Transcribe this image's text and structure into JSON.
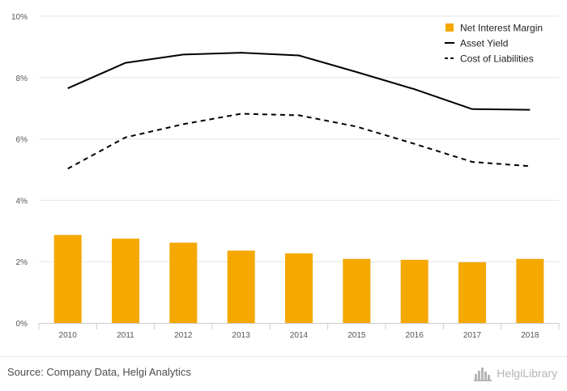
{
  "chart_data": {
    "type": "bar",
    "categories": [
      "2010",
      "2011",
      "2012",
      "2013",
      "2014",
      "2015",
      "2016",
      "2017",
      "2018"
    ],
    "ylim": [
      0,
      10
    ],
    "yticks": [
      0,
      2,
      4,
      6,
      8,
      10
    ],
    "ytick_labels": [
      "0%",
      "2%",
      "4%",
      "6%",
      "8%",
      "10%"
    ],
    "grid": true,
    "legend_position": "top-right",
    "series": [
      {
        "name": "Net Interest Margin",
        "type": "bar",
        "color": "#f5a800",
        "values": [
          2.87,
          2.75,
          2.62,
          2.36,
          2.27,
          2.09,
          2.06,
          1.98,
          2.09
        ]
      },
      {
        "name": "Asset Yield",
        "type": "line",
        "style": "solid",
        "color": "#000000",
        "values": [
          7.65,
          8.48,
          8.75,
          8.81,
          8.72,
          8.18,
          7.62,
          6.97,
          6.95
        ]
      },
      {
        "name": "Cost of Liabilities",
        "type": "line",
        "style": "dashed",
        "color": "#000000",
        "values": [
          5.03,
          6.05,
          6.48,
          6.82,
          6.77,
          6.4,
          5.84,
          5.25,
          5.11
        ]
      }
    ]
  },
  "footer": {
    "source": "Source: Company Data, Helgi Analytics",
    "logo_text": "HelgiLibrary",
    "logo_icon": "helgi-library-logo-icon"
  }
}
